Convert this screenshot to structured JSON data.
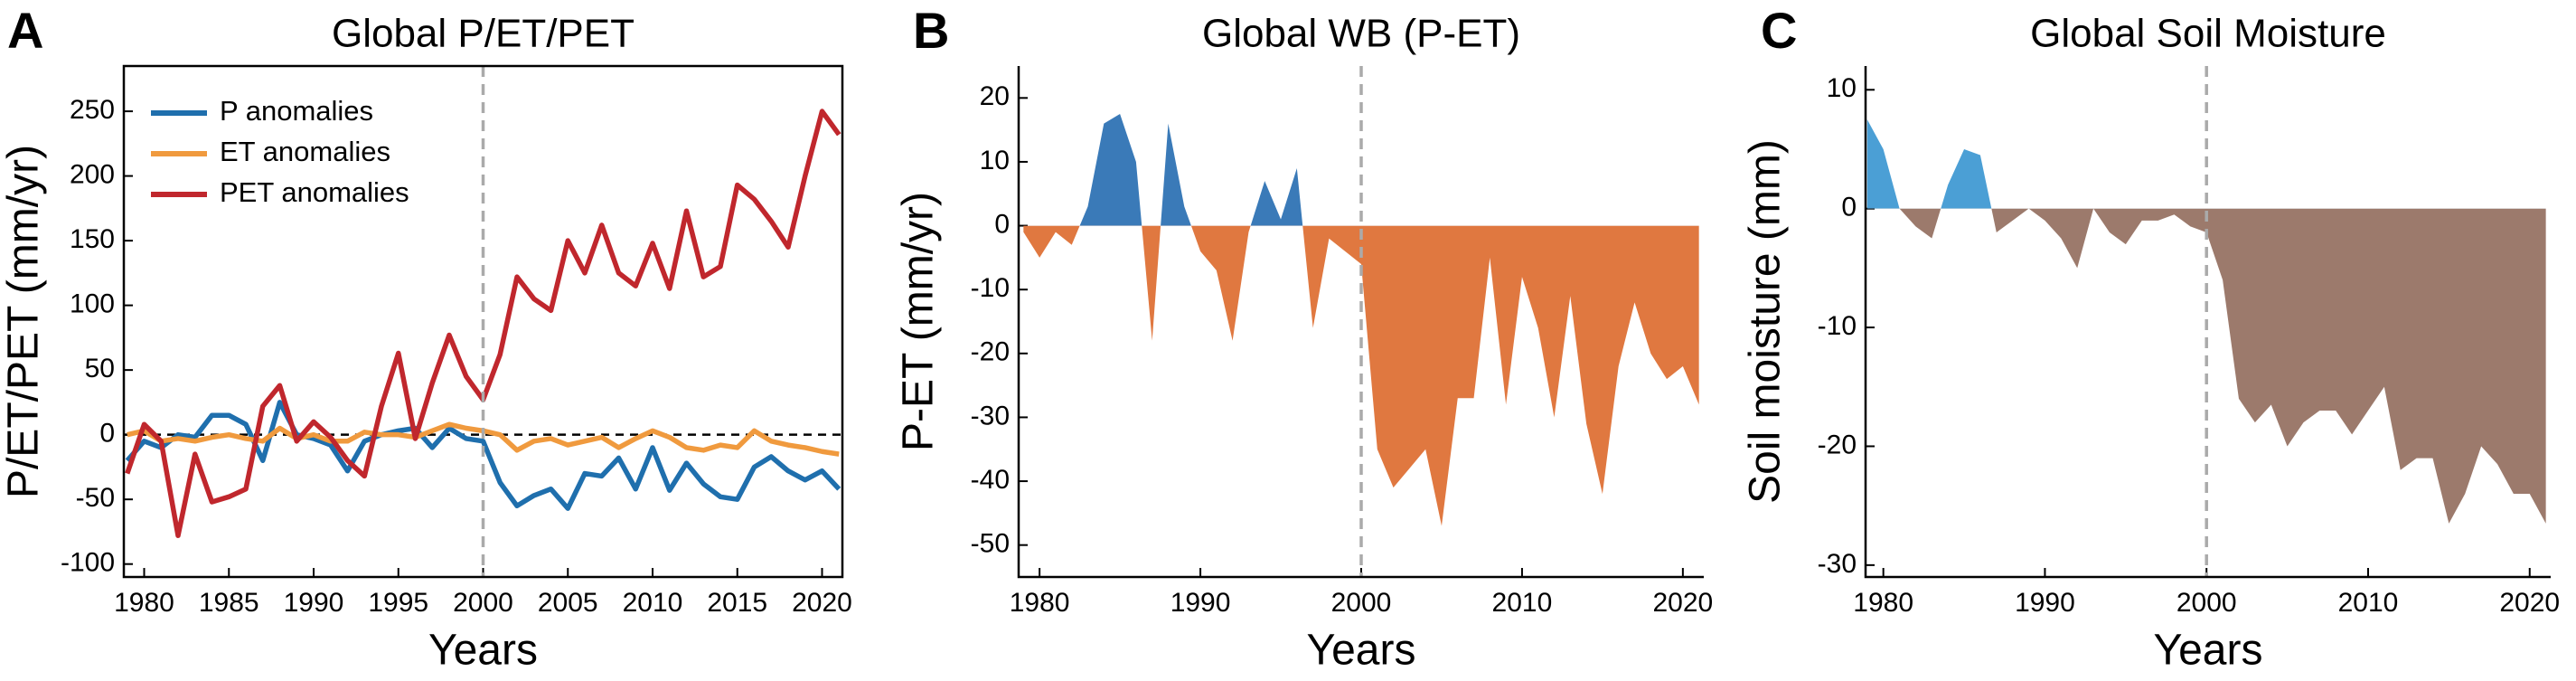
{
  "chart_data": [
    {
      "type": "line",
      "letter": "A",
      "title": "Global P/ET/PET",
      "xlabel": "Years",
      "ylabel": "P/ET/PET (mm/yr)",
      "x": [
        1979,
        1980,
        1981,
        1982,
        1983,
        1984,
        1985,
        1986,
        1987,
        1988,
        1989,
        1990,
        1991,
        1992,
        1993,
        1994,
        1995,
        1996,
        1997,
        1998,
        1999,
        2000,
        2001,
        2002,
        2003,
        2004,
        2005,
        2006,
        2007,
        2008,
        2009,
        2010,
        2011,
        2012,
        2013,
        2014,
        2015,
        2016,
        2017,
        2018,
        2019,
        2020,
        2021
      ],
      "series": [
        {
          "name": "P anomalies",
          "color": "#1f6fad",
          "values": [
            -20,
            -5,
            -10,
            0,
            -2,
            15,
            15,
            8,
            -20,
            25,
            0,
            -3,
            -8,
            -28,
            -5,
            0,
            3,
            5,
            -10,
            5,
            -3,
            -5,
            -37,
            -55,
            -47,
            -42,
            -57,
            -30,
            -32,
            -18,
            -42,
            -10,
            -43,
            -22,
            -38,
            -48,
            -50,
            -25,
            -17,
            -28,
            -35,
            -28,
            -42
          ]
        },
        {
          "name": "ET anomalies",
          "color": "#f09a3e",
          "values": [
            0,
            3,
            -5,
            -3,
            -5,
            -2,
            0,
            -3,
            -5,
            5,
            -3,
            0,
            -5,
            -5,
            2,
            0,
            0,
            -2,
            3,
            8,
            5,
            3,
            0,
            -12,
            -5,
            -3,
            -8,
            -5,
            -2,
            -10,
            -3,
            3,
            -2,
            -10,
            -12,
            -8,
            -10,
            3,
            -5,
            -8,
            -10,
            -13,
            -15
          ]
        },
        {
          "name": "PET anomalies",
          "color": "#c0272d",
          "values": [
            -30,
            8,
            -5,
            -78,
            -15,
            -52,
            -48,
            -42,
            22,
            38,
            -5,
            10,
            -2,
            -20,
            -32,
            22,
            63,
            -3,
            40,
            77,
            45,
            27,
            62,
            122,
            105,
            96,
            150,
            125,
            162,
            125,
            115,
            148,
            113,
            173,
            122,
            130,
            193,
            182,
            165,
            145,
            200,
            250,
            232
          ]
        }
      ],
      "xlim": [
        1978.8,
        2021.2
      ],
      "xticks": [
        1980,
        1985,
        1990,
        1995,
        2000,
        2005,
        2010,
        2015,
        2020
      ],
      "ylim": [
        -110,
        285
      ],
      "yticks": [
        -100,
        -50,
        0,
        50,
        100,
        150,
        200,
        250
      ],
      "hline": 0,
      "vline": 2000,
      "legend": "upper left"
    },
    {
      "type": "area",
      "letter": "B",
      "title": "Global WB (P-ET)",
      "xlabel": "Years",
      "ylabel": "P-ET (mm/yr)",
      "x": [
        1979,
        1980,
        1981,
        1982,
        1983,
        1984,
        1985,
        1986,
        1987,
        1988,
        1989,
        1990,
        1991,
        1992,
        1993,
        1994,
        1995,
        1996,
        1997,
        1998,
        1999,
        2000,
        2001,
        2002,
        2003,
        2004,
        2005,
        2006,
        2007,
        2008,
        2009,
        2010,
        2011,
        2012,
        2013,
        2014,
        2015,
        2016,
        2017,
        2018,
        2019,
        2020,
        2021
      ],
      "values": [
        -1,
        -5,
        -1,
        -3,
        3,
        16,
        17.5,
        10,
        -18,
        16,
        3,
        -4,
        -7,
        -18,
        -1,
        7,
        1,
        9,
        -16,
        -2,
        -4,
        -6,
        -35,
        -41,
        -38,
        -35,
        -47,
        -27,
        -27,
        -5,
        -28,
        -8,
        -16,
        -30,
        -11,
        -31,
        -42,
        -22,
        -12,
        -20,
        -24,
        -22,
        -28
      ],
      "color_positive": "#3a7ab8",
      "color_negative": "#e07840",
      "xlim": [
        1978.7,
        2021.3
      ],
      "xticks": [
        1980,
        1990,
        2000,
        2010,
        2020
      ],
      "ylim": [
        -55,
        25
      ],
      "yticks": [
        -50,
        -40,
        -30,
        -20,
        -10,
        0,
        10,
        20
      ],
      "vline": 2000
    },
    {
      "type": "area",
      "letter": "C",
      "title": "Global Soil Moisture",
      "xlabel": "Years",
      "ylabel": "Soil moisture (mm)",
      "x": [
        1979,
        1980,
        1981,
        1982,
        1983,
        1984,
        1985,
        1986,
        1987,
        1988,
        1989,
        1990,
        1991,
        1992,
        1993,
        1994,
        1995,
        1996,
        1997,
        1998,
        1999,
        2000,
        2001,
        2002,
        2003,
        2004,
        2005,
        2006,
        2007,
        2008,
        2009,
        2010,
        2011,
        2012,
        2013,
        2014,
        2015,
        2016,
        2017,
        2018,
        2019,
        2020,
        2021
      ],
      "values": [
        7.5,
        5,
        0,
        -1.5,
        -2.5,
        2,
        5,
        4.5,
        -2,
        -1,
        0,
        -1,
        -2.5,
        -5,
        0,
        -2,
        -3,
        -1,
        -1,
        -0.5,
        -1.5,
        -2,
        -6,
        -16,
        -18,
        -16.5,
        -20,
        -18,
        -17,
        -17,
        -19,
        -17,
        -15,
        -22,
        -21,
        -21,
        -26.5,
        -24,
        -20,
        -21.5,
        -24,
        -24,
        -26.5
      ],
      "color_positive": "#4b9fd5",
      "color_negative": "#9c7a6c",
      "xlim": [
        1978.9,
        2021.3
      ],
      "xticks": [
        1980,
        1990,
        2000,
        2010,
        2020
      ],
      "ylim": [
        -31,
        12
      ],
      "yticks": [
        -30,
        -20,
        -10,
        0,
        10
      ],
      "vline": 2000
    }
  ]
}
